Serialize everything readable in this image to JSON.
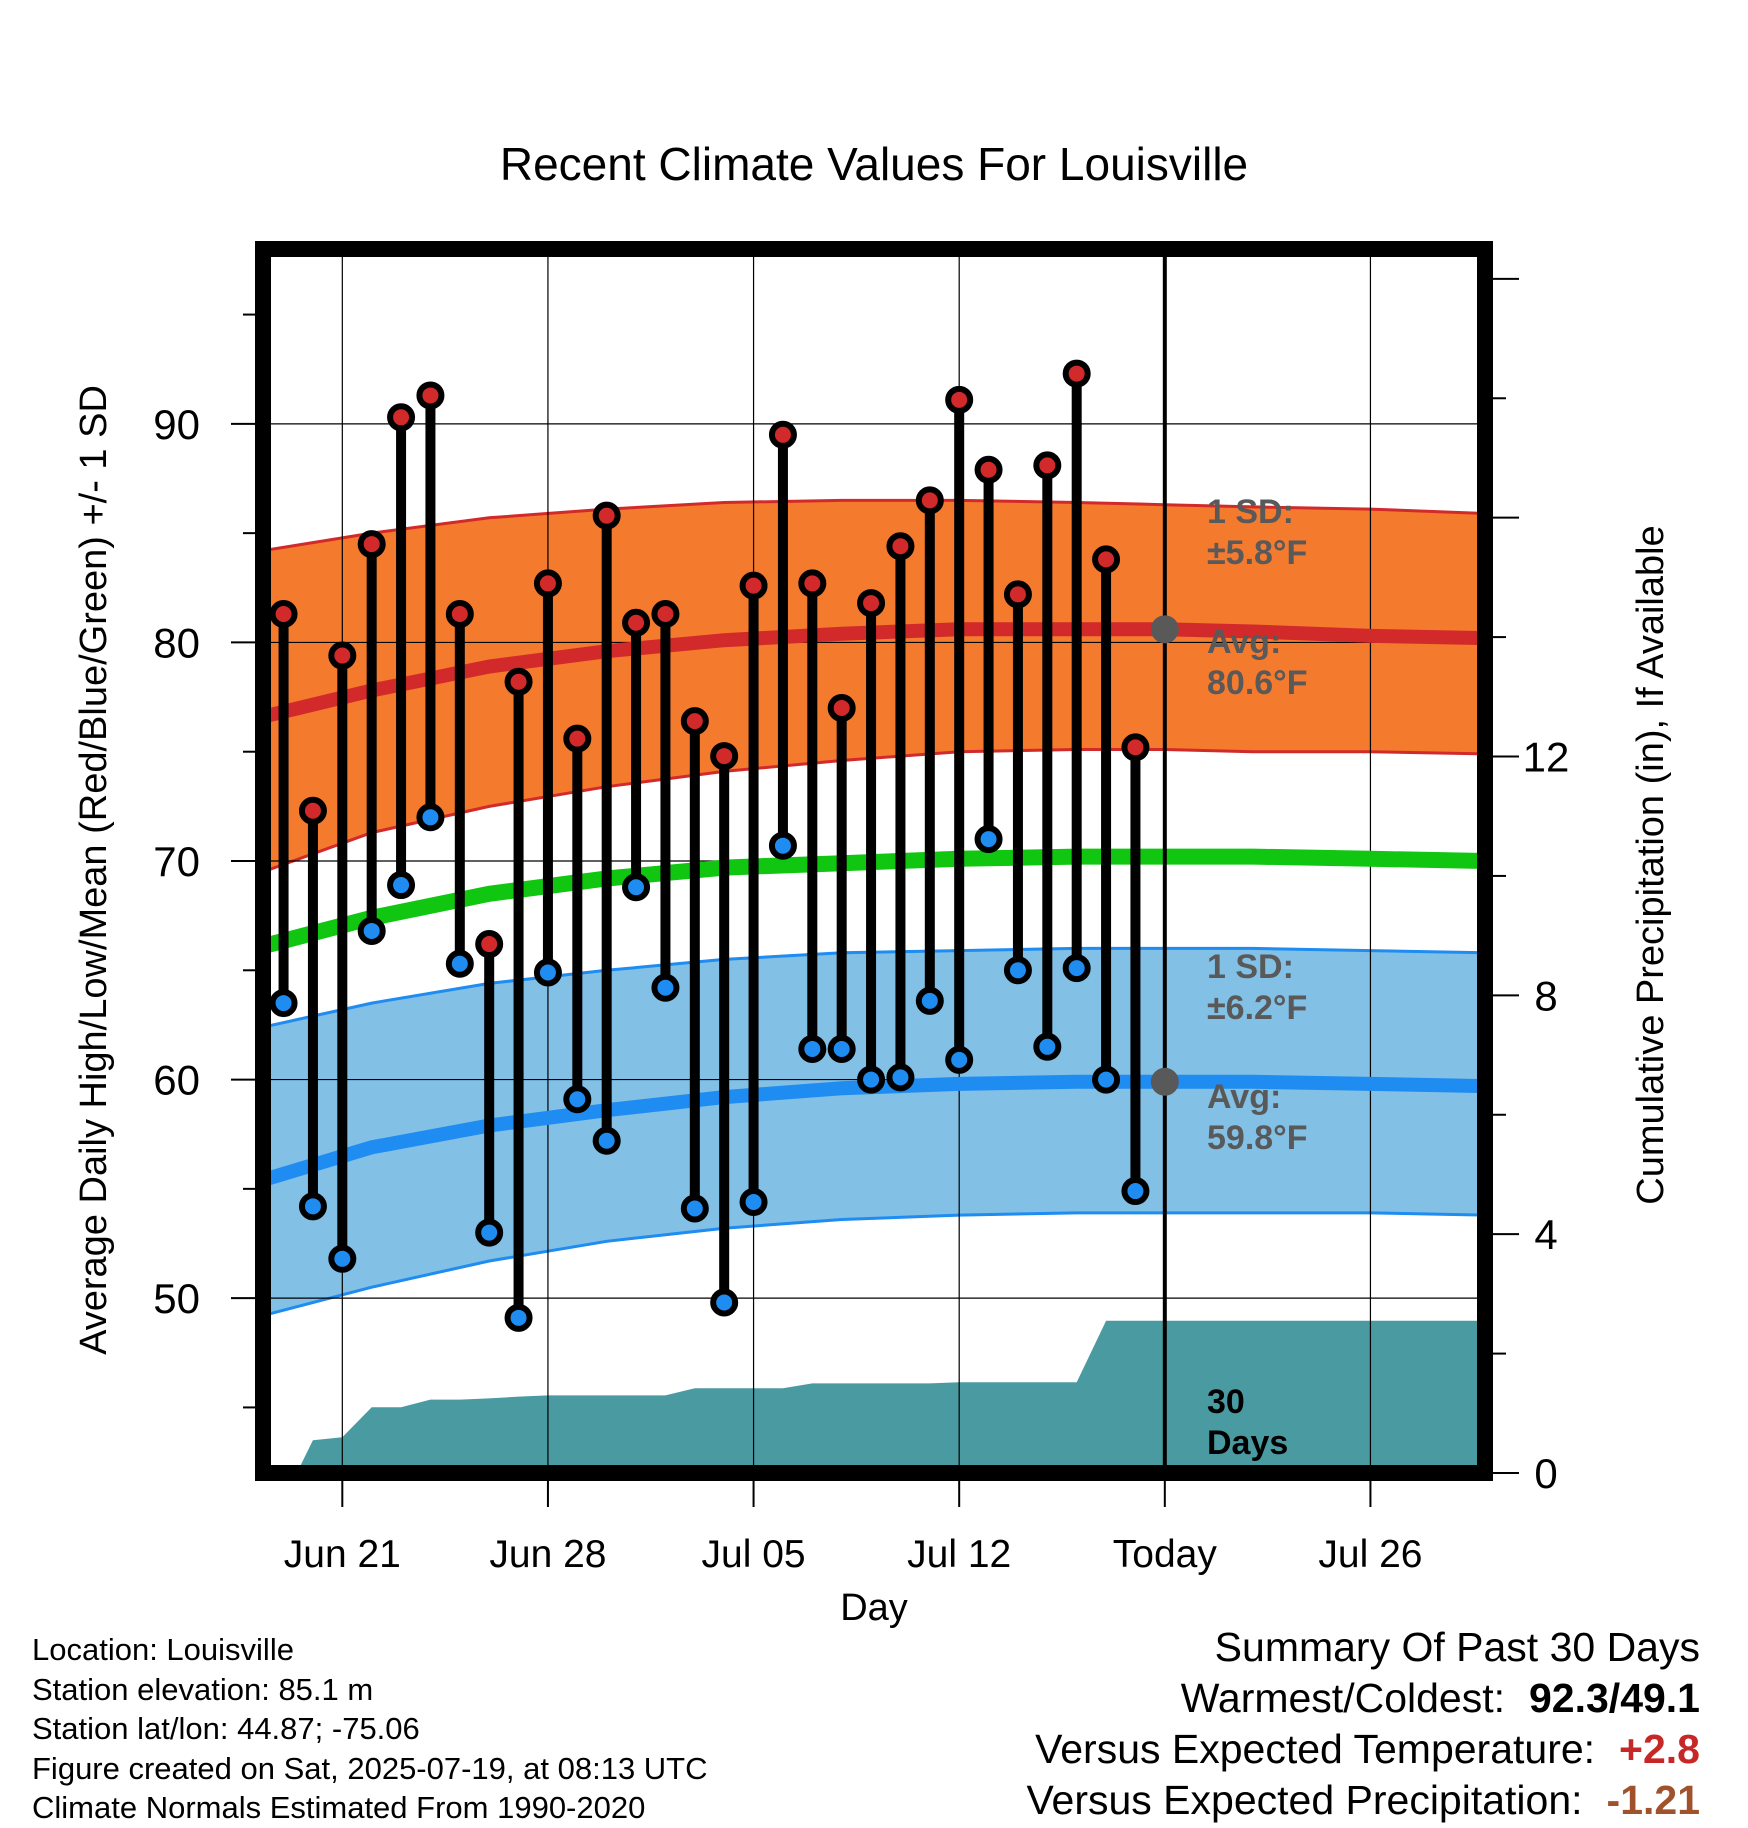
{
  "chart_data": {
    "type": "line",
    "title": "Recent Climate Values For Louisville",
    "xlabel": "Day",
    "ylabel": "Average Daily High/Low/Mean (Red/Blue/Green) +/- 1 SD",
    "y2label": "Cumulative Precipitation (in), If Available",
    "x_tick_labels": [
      "Jun 21",
      "Jun 28",
      "Jul 05",
      "Jul 12",
      "Today",
      "Jul 26"
    ],
    "x_tick_days": [
      3,
      10,
      17,
      24,
      31,
      38
    ],
    "x_range_days": [
      0.3,
      41.9
    ],
    "today_day": 31,
    "ylim": [
      42,
      98
    ],
    "yticks": [
      50,
      60,
      70,
      80,
      90
    ],
    "y2lim": [
      0,
      20.5
    ],
    "y2ticks": [
      0,
      4,
      8,
      12
    ],
    "grid": true,
    "colors": {
      "high_band": "#f47a2e",
      "high_line": "#d22a2a",
      "low_band": "#82c0e6",
      "low_line": "#1e8cf0",
      "mean_line": "#11c611",
      "precip": "#4a9aa2",
      "high_point": "#d22a2a",
      "low_point": "#1e8cf0",
      "annot": "#595959"
    },
    "normals": {
      "day": [
        0.3,
        4,
        8,
        12,
        16,
        20,
        24,
        28,
        31,
        34,
        38,
        41.9
      ],
      "high_avg": [
        76.6,
        77.8,
        78.9,
        79.6,
        80.1,
        80.4,
        80.6,
        80.6,
        80.6,
        80.5,
        80.3,
        80.2
      ],
      "high_sd_upper": [
        84.2,
        85.0,
        85.7,
        86.1,
        86.4,
        86.5,
        86.5,
        86.4,
        86.3,
        86.2,
        86.1,
        85.9
      ],
      "high_sd_lower": [
        69.5,
        71.3,
        72.5,
        73.4,
        74.1,
        74.6,
        75.0,
        75.1,
        75.1,
        75.0,
        75.0,
        74.9
      ],
      "low_avg": [
        55.4,
        56.9,
        57.9,
        58.6,
        59.2,
        59.6,
        59.8,
        59.9,
        59.9,
        59.9,
        59.8,
        59.7
      ],
      "low_sd_upper": [
        62.4,
        63.5,
        64.4,
        65.0,
        65.5,
        65.8,
        65.9,
        66.0,
        66.0,
        66.0,
        65.9,
        65.8
      ],
      "low_sd_lower": [
        49.2,
        50.5,
        51.7,
        52.6,
        53.2,
        53.6,
        53.8,
        53.9,
        53.9,
        53.9,
        53.9,
        53.8
      ],
      "mean": [
        66.1,
        67.4,
        68.5,
        69.2,
        69.7,
        69.9,
        70.1,
        70.2,
        70.2,
        70.2,
        70.1,
        70.0
      ]
    },
    "series": [
      {
        "name": "High",
        "day": [
          1,
          2,
          3,
          4,
          5,
          6,
          7,
          8,
          9,
          10,
          11,
          12,
          13,
          14,
          15,
          16,
          17,
          18,
          19,
          20,
          21,
          22,
          23,
          24,
          25,
          26,
          27,
          28,
          29,
          30
        ],
        "values": [
          81.3,
          72.3,
          79.4,
          84.5,
          90.3,
          91.3,
          81.3,
          66.2,
          78.2,
          82.7,
          75.6,
          85.8,
          80.9,
          81.3,
          76.4,
          74.8,
          82.6,
          89.5,
          82.7,
          77.0,
          81.8,
          84.4,
          86.5,
          91.1,
          87.9,
          82.2,
          88.1,
          92.3,
          83.8,
          75.2
        ]
      },
      {
        "name": "Low",
        "day": [
          1,
          2,
          3,
          4,
          5,
          6,
          7,
          8,
          9,
          10,
          11,
          12,
          13,
          14,
          15,
          16,
          17,
          18,
          19,
          20,
          21,
          22,
          23,
          24,
          25,
          26,
          27,
          28,
          29,
          30
        ],
        "values": [
          63.5,
          54.2,
          51.8,
          66.8,
          68.9,
          72.0,
          65.3,
          53.0,
          49.1,
          64.9,
          59.1,
          57.2,
          68.8,
          64.2,
          54.1,
          49.8,
          54.4,
          70.7,
          61.4,
          61.4,
          60.0,
          60.1,
          63.6,
          60.9,
          71.0,
          65.0,
          61.5,
          65.1,
          60.0,
          54.9
        ]
      },
      {
        "name": "Cumulative Precipitation",
        "day": [
          1,
          1.5,
          2,
          3,
          4,
          5,
          6,
          7,
          8,
          9,
          10,
          11,
          12,
          13,
          14,
          15,
          16,
          17,
          18,
          19,
          20,
          21,
          22,
          23,
          24,
          25,
          26,
          27,
          28,
          29,
          30,
          31,
          35,
          38,
          41.9
        ],
        "values": [
          0,
          0.05,
          0.55,
          0.6,
          1.1,
          1.1,
          1.23,
          1.23,
          1.25,
          1.28,
          1.3,
          1.3,
          1.3,
          1.3,
          1.3,
          1.42,
          1.42,
          1.42,
          1.42,
          1.5,
          1.5,
          1.5,
          1.5,
          1.5,
          1.52,
          1.52,
          1.52,
          1.52,
          1.52,
          2.55,
          2.55,
          2.55,
          2.55,
          2.55,
          2.55
        ]
      }
    ],
    "annotations": {
      "high_sd": [
        "1 SD:",
        "±5.8°F"
      ],
      "high_avg": [
        "Avg:",
        "80.6°F"
      ],
      "low_sd": [
        "1 SD:",
        "±6.2°F"
      ],
      "low_avg": [
        "Avg:",
        "59.8°F"
      ],
      "days": [
        "30",
        "Days"
      ]
    }
  },
  "info": {
    "location": "Location: Louisville",
    "elevation": "Station elevation: 85.1 m",
    "latlon": "Station lat/lon: 44.87; -75.06",
    "created": "Figure created on Sat, 2025-07-19, at 08:13 UTC",
    "normals": "Climate Normals Estimated From 1990-2020"
  },
  "summary": {
    "heading": "Summary Of Past 30 Days",
    "warm_cold_label": "Warmest/Coldest:",
    "warm_cold_value": "92.3/49.1",
    "temp_label": "Versus Expected Temperature:",
    "temp_value": "+2.8",
    "precip_label": "Versus Expected Precipitation:",
    "precip_value": "-1.21"
  }
}
